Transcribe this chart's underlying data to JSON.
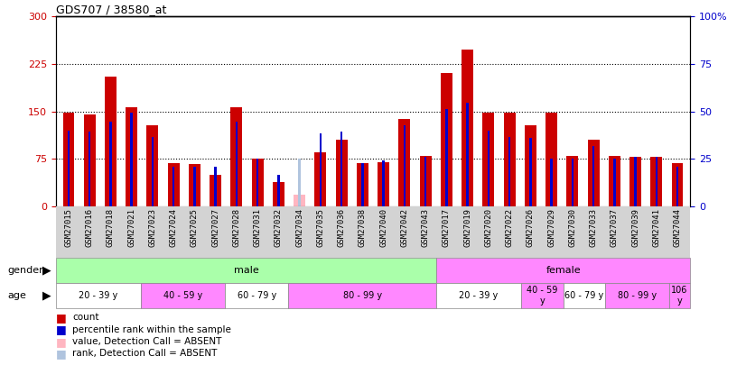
{
  "title": "GDS707 / 38580_at",
  "samples": [
    "GSM27015",
    "GSM27016",
    "GSM27018",
    "GSM27021",
    "GSM27023",
    "GSM27024",
    "GSM27025",
    "GSM27027",
    "GSM27028",
    "GSM27031",
    "GSM27032",
    "GSM27034",
    "GSM27035",
    "GSM27036",
    "GSM27038",
    "GSM27040",
    "GSM27042",
    "GSM27043",
    "GSM27017",
    "GSM27019",
    "GSM27020",
    "GSM27022",
    "GSM27026",
    "GSM27029",
    "GSM27030",
    "GSM27033",
    "GSM27037",
    "GSM27039",
    "GSM27041",
    "GSM27044"
  ],
  "red_values": [
    148,
    145,
    205,
    157,
    128,
    68,
    67,
    50,
    157,
    75,
    38,
    0,
    85,
    105,
    68,
    70,
    138,
    80,
    210,
    248,
    148,
    148,
    128,
    148,
    80,
    105,
    80,
    78,
    78,
    68
  ],
  "blue_values": [
    120,
    118,
    133,
    148,
    110,
    62,
    62,
    62,
    133,
    75,
    50,
    0,
    115,
    118,
    68,
    72,
    128,
    78,
    153,
    163,
    120,
    110,
    108,
    75,
    75,
    95,
    75,
    78,
    78,
    62
  ],
  "absent_red": [
    0,
    0,
    0,
    0,
    0,
    0,
    0,
    0,
    0,
    0,
    0,
    18,
    0,
    0,
    0,
    0,
    0,
    0,
    0,
    0,
    0,
    0,
    0,
    0,
    0,
    0,
    0,
    0,
    0,
    0
  ],
  "absent_blue": [
    0,
    0,
    0,
    0,
    0,
    0,
    0,
    0,
    0,
    0,
    0,
    25,
    0,
    0,
    0,
    0,
    0,
    0,
    0,
    0,
    0,
    0,
    0,
    0,
    0,
    0,
    0,
    0,
    0,
    0
  ],
  "ylim_left": [
    0,
    300
  ],
  "ylim_right": [
    0,
    100
  ],
  "yticks_left": [
    0,
    75,
    150,
    225,
    300
  ],
  "ytick_right_labels": [
    "0",
    "25",
    "50",
    "75",
    "100%"
  ],
  "yticks_right": [
    0,
    25,
    50,
    75,
    100
  ],
  "gender_groups": [
    {
      "label": "male",
      "start": 0,
      "end": 18,
      "color": "#aaffaa"
    },
    {
      "label": "female",
      "start": 18,
      "end": 30,
      "color": "#ff88ff"
    }
  ],
  "age_groups": [
    {
      "label": "20 - 39 y",
      "start": 0,
      "end": 4,
      "color": "#ffffff"
    },
    {
      "label": "40 - 59 y",
      "start": 4,
      "end": 8,
      "color": "#ff88ff"
    },
    {
      "label": "60 - 79 y",
      "start": 8,
      "end": 11,
      "color": "#ffffff"
    },
    {
      "label": "80 - 99 y",
      "start": 11,
      "end": 18,
      "color": "#ff88ff"
    },
    {
      "label": "20 - 39 y",
      "start": 18,
      "end": 22,
      "color": "#ffffff"
    },
    {
      "label": "40 - 59\ny",
      "start": 22,
      "end": 24,
      "color": "#ff88ff"
    },
    {
      "label": "60 - 79 y",
      "start": 24,
      "end": 26,
      "color": "#ffffff"
    },
    {
      "label": "80 - 99 y",
      "start": 26,
      "end": 29,
      "color": "#ff88ff"
    },
    {
      "label": "106\ny",
      "start": 29,
      "end": 30,
      "color": "#ff88ff"
    }
  ],
  "legend_items": [
    {
      "color": "#cc0000",
      "label": "count"
    },
    {
      "color": "#0000cc",
      "label": "percentile rank within the sample"
    },
    {
      "color": "#ffb6c1",
      "label": "value, Detection Call = ABSENT"
    },
    {
      "color": "#b0c4de",
      "label": "rank, Detection Call = ABSENT"
    }
  ],
  "bar_color_red": "#cc0000",
  "bar_color_blue": "#0000cc",
  "absent_color_red": "#ffb6c1",
  "absent_color_blue": "#b0c4de",
  "right_axis_color": "#0000cc",
  "left_axis_color": "#cc0000"
}
